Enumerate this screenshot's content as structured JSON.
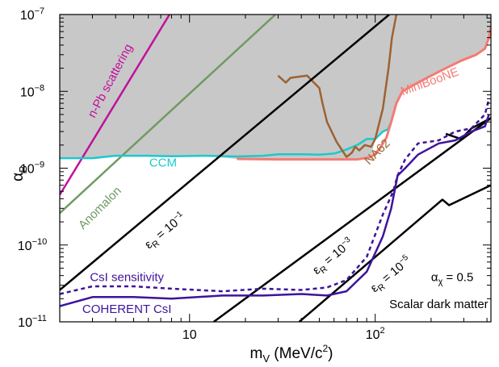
{
  "chart_data": {
    "type": "line",
    "title": "",
    "x_scale": "log",
    "y_scale": "log",
    "xlim": [
      2,
      420
    ],
    "ylim": [
      1e-11,
      1e-07
    ],
    "xlabel": {
      "main": "m",
      "sub": "V",
      "rest": " (MeV/c",
      "sup": "2",
      "end": ")"
    },
    "ylabel": {
      "main": "α",
      "sub": "B"
    },
    "x_ticks": [
      {
        "value": 10,
        "base": "10",
        "exp": ""
      },
      {
        "value": 100,
        "base": "10",
        "exp": "2"
      }
    ],
    "y_ticks": [
      {
        "value": 1e-11,
        "base": "10",
        "exp": "−11"
      },
      {
        "value": 1e-10,
        "base": "10",
        "exp": "−10"
      },
      {
        "value": 1e-09,
        "base": "10",
        "exp": "−9"
      },
      {
        "value": 1e-08,
        "base": "10",
        "exp": "−8"
      },
      {
        "value": 1e-07,
        "base": "10",
        "exp": "−7"
      }
    ],
    "excluded_region_color": "#c8c8c8",
    "series": [
      {
        "name": "n-Pb scattering",
        "color": "#c0119c",
        "width": 2.5,
        "dash": "",
        "points": [
          [
            2,
            4.5e-10
          ],
          [
            7.8,
            1e-07
          ]
        ]
      },
      {
        "name": "Anomalon",
        "color": "#6e9b62",
        "width": 2.5,
        "dash": "",
        "points": [
          [
            2,
            2.6e-10
          ],
          [
            29,
            1e-07
          ]
        ]
      },
      {
        "name": "CCM",
        "color": "#1cc9cc",
        "width": 2.5,
        "dash": "",
        "points": [
          [
            2,
            1.35e-09
          ],
          [
            3,
            1.35e-09
          ],
          [
            4,
            1.45e-09
          ],
          [
            6,
            1.45e-09
          ],
          [
            8,
            1.43e-09
          ],
          [
            12,
            1.45e-09
          ],
          [
            18,
            1.42e-09
          ],
          [
            25,
            1.45e-09
          ],
          [
            30,
            1.52e-09
          ],
          [
            40,
            1.52e-09
          ],
          [
            50,
            1.5e-09
          ],
          [
            60,
            1.55e-09
          ],
          [
            70,
            1.75e-09
          ],
          [
            80,
            2e-09
          ],
          [
            90,
            2.4e-09
          ],
          [
            100,
            2.4e-09
          ],
          [
            110,
            3e-09
          ],
          [
            117,
            3.2e-09
          ],
          [
            122,
            4e-09
          ]
        ]
      },
      {
        "name": "MiniBooNE",
        "color": "#f47b75",
        "width": 3,
        "dash": "",
        "points": [
          [
            18,
            1.32e-09
          ],
          [
            30,
            1.3e-09
          ],
          [
            60,
            1.3e-09
          ],
          [
            80,
            1.3e-09
          ],
          [
            95,
            1.4e-09
          ],
          [
            105,
            1.75e-09
          ],
          [
            115,
            2.5e-09
          ],
          [
            122,
            4e-09
          ],
          [
            130,
            7e-09
          ],
          [
            140,
            1e-08
          ],
          [
            160,
            1.2e-08
          ],
          [
            190,
            1.5e-08
          ],
          [
            230,
            1.9e-08
          ],
          [
            290,
            2.5e-08
          ],
          [
            350,
            3e-08
          ],
          [
            390,
            3.6e-08
          ],
          [
            410,
            5e-08
          ],
          [
            420,
            7e-08
          ]
        ]
      },
      {
        "name": "NA62",
        "color": "#9e6230",
        "width": 2.5,
        "dash": "",
        "points": [
          [
            30,
            1.6e-08
          ],
          [
            33,
            1.3e-08
          ],
          [
            35,
            1.5e-08
          ],
          [
            43,
            1.6e-08
          ],
          [
            50,
            1.1e-08
          ],
          [
            52,
            7e-09
          ],
          [
            55,
            4e-09
          ],
          [
            62,
            2.2e-09
          ],
          [
            70,
            1.4e-09
          ],
          [
            75,
            1.6e-09
          ],
          [
            78,
            1.9e-09
          ],
          [
            82,
            1.7e-09
          ],
          [
            88,
            2e-09
          ],
          [
            95,
            1.9e-09
          ],
          [
            100,
            2.4e-09
          ],
          [
            110,
            6e-09
          ],
          [
            118,
            2e-08
          ],
          [
            123,
            5e-08
          ],
          [
            130,
            1e-07
          ]
        ]
      },
      {
        "name": "ε_R = 10^-1",
        "color": "#000000",
        "width": 2.5,
        "dash": "",
        "points": [
          [
            2,
            2.6e-11
          ],
          [
            119,
            1e-07
          ]
        ]
      },
      {
        "name": "ε_R = 10^-3",
        "color": "#000000",
        "width": 2.5,
        "dash": "",
        "points": [
          [
            13.5,
            1e-11
          ],
          [
            420,
            4.5e-09
          ],
          [
            330,
            3.3e-09
          ],
          [
            290,
            2.4e-09
          ],
          [
            240,
            2.8e-09
          ]
        ]
      },
      {
        "name": "ε_R = 10^-5",
        "color": "#000000",
        "width": 2.5,
        "dash": "",
        "points": [
          [
            39,
            1e-11
          ],
          [
            230,
            3.9e-10
          ],
          [
            250,
            3.3e-10
          ],
          [
            420,
            6e-10
          ]
        ]
      },
      {
        "name": "CsI sensitivity",
        "color": "#3e139c",
        "width": 2.5,
        "dash": "5,4",
        "points": [
          [
            2,
            2.3e-11
          ],
          [
            3,
            2.9e-11
          ],
          [
            5,
            2.9e-11
          ],
          [
            8,
            2.7e-11
          ],
          [
            15,
            2.5e-11
          ],
          [
            25,
            2.7e-11
          ],
          [
            40,
            2.6e-11
          ],
          [
            55,
            2.8e-11
          ],
          [
            70,
            3.5e-11
          ],
          [
            90,
            7e-11
          ],
          [
            110,
            2.5e-10
          ],
          [
            125,
            5e-10
          ],
          [
            132,
            8e-10
          ],
          [
            145,
            1.3e-09
          ],
          [
            170,
            2.1e-09
          ],
          [
            220,
            2.3e-09
          ],
          [
            270,
            3e-09
          ],
          [
            330,
            3.3e-09
          ],
          [
            390,
            5e-09
          ],
          [
            410,
            8e-09
          ]
        ]
      },
      {
        "name": "COHERENT CsI",
        "color": "#3e139c",
        "width": 2.5,
        "dash": "",
        "points": [
          [
            2,
            1.6e-11
          ],
          [
            3,
            2.1e-11
          ],
          [
            5,
            2.1e-11
          ],
          [
            8,
            2e-11
          ],
          [
            15,
            2.2e-11
          ],
          [
            25,
            2.2e-11
          ],
          [
            40,
            2.3e-11
          ],
          [
            55,
            2.2e-11
          ],
          [
            70,
            2.5e-11
          ],
          [
            90,
            4.5e-11
          ],
          [
            110,
            1.3e-10
          ],
          [
            122,
            3e-10
          ],
          [
            132,
            8e-10
          ],
          [
            145,
            1e-09
          ],
          [
            170,
            1.5e-09
          ],
          [
            220,
            2.1e-09
          ],
          [
            270,
            2.3e-09
          ],
          [
            330,
            3e-09
          ],
          [
            390,
            3.5e-09
          ],
          [
            410,
            5e-09
          ]
        ]
      }
    ],
    "labels": [
      {
        "id": "npb",
        "text": "n-Pb scattering",
        "color": "#c0119c",
        "x": 3.9,
        "y": 1.3e-08,
        "angle": -62
      },
      {
        "id": "anomalon",
        "text": "Anomalon",
        "color": "#6e9b62",
        "x": 3.4,
        "y": 2.8e-10,
        "angle": -45
      },
      {
        "id": "ccm",
        "text": "CCM",
        "color": "#1cc9cc",
        "x": 7.2,
        "y": 1.05e-09,
        "angle": 0
      },
      {
        "id": "miniboone",
        "text": "MiniBooNE",
        "color": "#f47b75",
        "x": 200,
        "y": 1.2e-08,
        "angle": -20
      },
      {
        "id": "na62",
        "text": "NA62",
        "color": "#9e6230",
        "x": 106,
        "y": 1.5e-09,
        "angle": -45
      },
      {
        "id": "csi_sens",
        "text": "CsI sensitivity",
        "color": "#3e139c",
        "x": 4.6,
        "y": 3.4e-11,
        "angle": 0
      },
      {
        "id": "coherent",
        "text": "COHERENT CsI",
        "color": "#3e139c",
        "x": 4.6,
        "y": 1.3e-11,
        "angle": 0
      }
    ],
    "eps_labels": [
      {
        "id": "eps1",
        "value": "10",
        "exp": "−1",
        "x": 7.6,
        "y": 1.4e-10,
        "angle": -40
      },
      {
        "id": "eps3",
        "value": "10",
        "exp": "−3",
        "x": 61,
        "y": 6.5e-11,
        "angle": -40
      },
      {
        "id": "eps5",
        "value": "10",
        "exp": "−5",
        "x": 125,
        "y": 3.8e-11,
        "angle": -40
      }
    ],
    "notes": [
      {
        "id": "alpha",
        "main": "α",
        "sub": "χ",
        "rest": " = 0.5",
        "x": 260,
        "y": 3.4e-11
      },
      {
        "id": "scalar",
        "text": "Scalar dark matter",
        "x": 220,
        "y": 1.5e-11
      }
    ]
  }
}
